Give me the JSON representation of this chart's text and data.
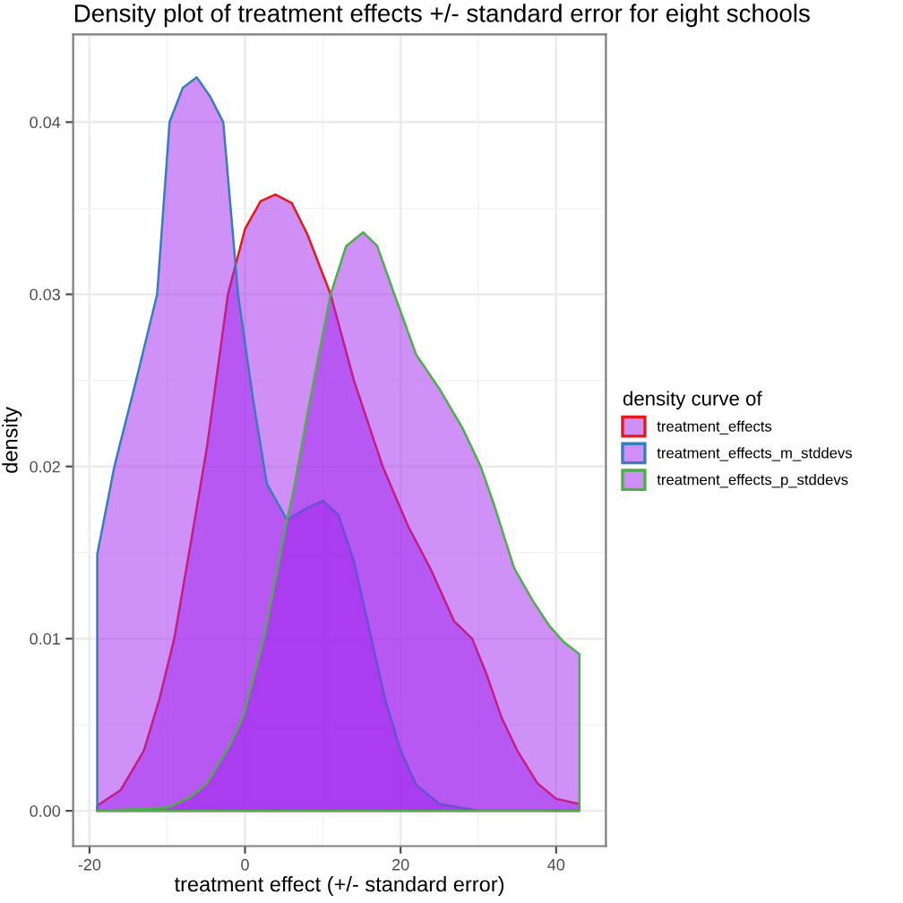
{
  "chart_data": {
    "type": "area",
    "title": "Density plot of treatment effects +/- standard error for eight schools",
    "xlabel": "treatment effect (+/- standard error)",
    "ylabel": "density",
    "legend_title": "density curve of",
    "series": [
      {
        "name": "treatment_effects",
        "color": "#e31a1c",
        "x": [
          -19,
          -16,
          -13,
          -11,
          -9.1,
          -7,
          -4.9,
          -2.2,
          0,
          2,
          3.9,
          6,
          8,
          11,
          14,
          17.7,
          21,
          23.8,
          26.9,
          29.2,
          31,
          33,
          35,
          37.6,
          40,
          43
        ],
        "values": [
          0.0003,
          0.0012,
          0.0035,
          0.0065,
          0.01,
          0.0155,
          0.0211,
          0.03,
          0.0338,
          0.0354,
          0.0358,
          0.0353,
          0.0335,
          0.03,
          0.025,
          0.02,
          0.0165,
          0.0141,
          0.011,
          0.01,
          0.008,
          0.0054,
          0.0035,
          0.0016,
          0.0007,
          0.0004
        ]
      },
      {
        "name": "treatment_effects_m_stddevs",
        "color": "#377eb8",
        "x": [
          -19,
          -16.8,
          -14,
          -11.3,
          -9.7,
          -8,
          -6.2,
          -4.5,
          -2.8,
          -0.9,
          1,
          2.8,
          5.4,
          8,
          10,
          12,
          14,
          16,
          18,
          20,
          22,
          25,
          30,
          43
        ],
        "values": [
          0.0149,
          0.02,
          0.025,
          0.03,
          0.04,
          0.042,
          0.0426,
          0.0415,
          0.04,
          0.03,
          0.024,
          0.019,
          0.0169,
          0.0176,
          0.018,
          0.0172,
          0.0145,
          0.0105,
          0.0065,
          0.0035,
          0.0015,
          0.0004,
          0,
          0
        ]
      },
      {
        "name": "treatment_effects_p_stddevs",
        "color": "#4daf4a",
        "x": [
          -19,
          -14,
          -9.9,
          -7,
          -4.9,
          -2,
          -0.3,
          2.4,
          5.4,
          6.2,
          8,
          11,
          13,
          15.2,
          17,
          19.2,
          22,
          25,
          28,
          30.3,
          32,
          34.6,
          37,
          39.2,
          41,
          43
        ],
        "values": [
          0,
          0.0001,
          0.0002,
          0.0008,
          0.0016,
          0.0038,
          0.0054,
          0.01,
          0.0169,
          0.0185,
          0.023,
          0.03,
          0.0328,
          0.0336,
          0.0328,
          0.03,
          0.0265,
          0.0245,
          0.0222,
          0.02,
          0.0178,
          0.0141,
          0.0122,
          0.0107,
          0.0098,
          0.0091
        ]
      }
    ],
    "xlim": [
      -22.1,
      46.4
    ],
    "ylim": [
      -0.00205,
      0.0451
    ],
    "xticks": [
      -20,
      0,
      20,
      40
    ],
    "yticks": [
      {
        "value": 0,
        "label": "0.00"
      },
      {
        "value": 0.01,
        "label": "0.01"
      },
      {
        "value": 0.02,
        "label": "0.02"
      },
      {
        "value": 0.03,
        "label": "0.03"
      },
      {
        "value": 0.04,
        "label": "0.04"
      }
    ],
    "grid": true,
    "legend": "right"
  }
}
